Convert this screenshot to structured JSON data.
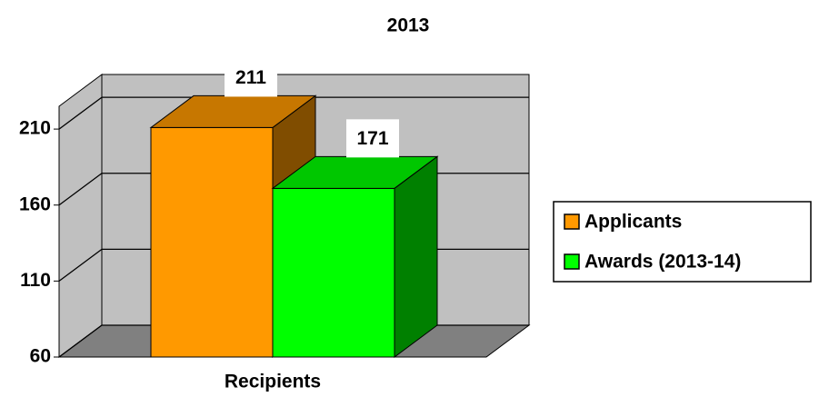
{
  "chart_data": {
    "type": "bar3d",
    "title": "2013",
    "xlabel": "Recipients",
    "categories": [
      "Recipients"
    ],
    "series": [
      {
        "name": "Applicants",
        "color": "#ff9900",
        "values": [
          211
        ]
      },
      {
        "name": "Awards (2013-14)",
        "color": "#00ff00",
        "values": [
          171
        ]
      }
    ],
    "ylim": [
      60,
      225
    ],
    "yticks": [
      60,
      110,
      160,
      210
    ],
    "grid": true,
    "legend": "right"
  }
}
